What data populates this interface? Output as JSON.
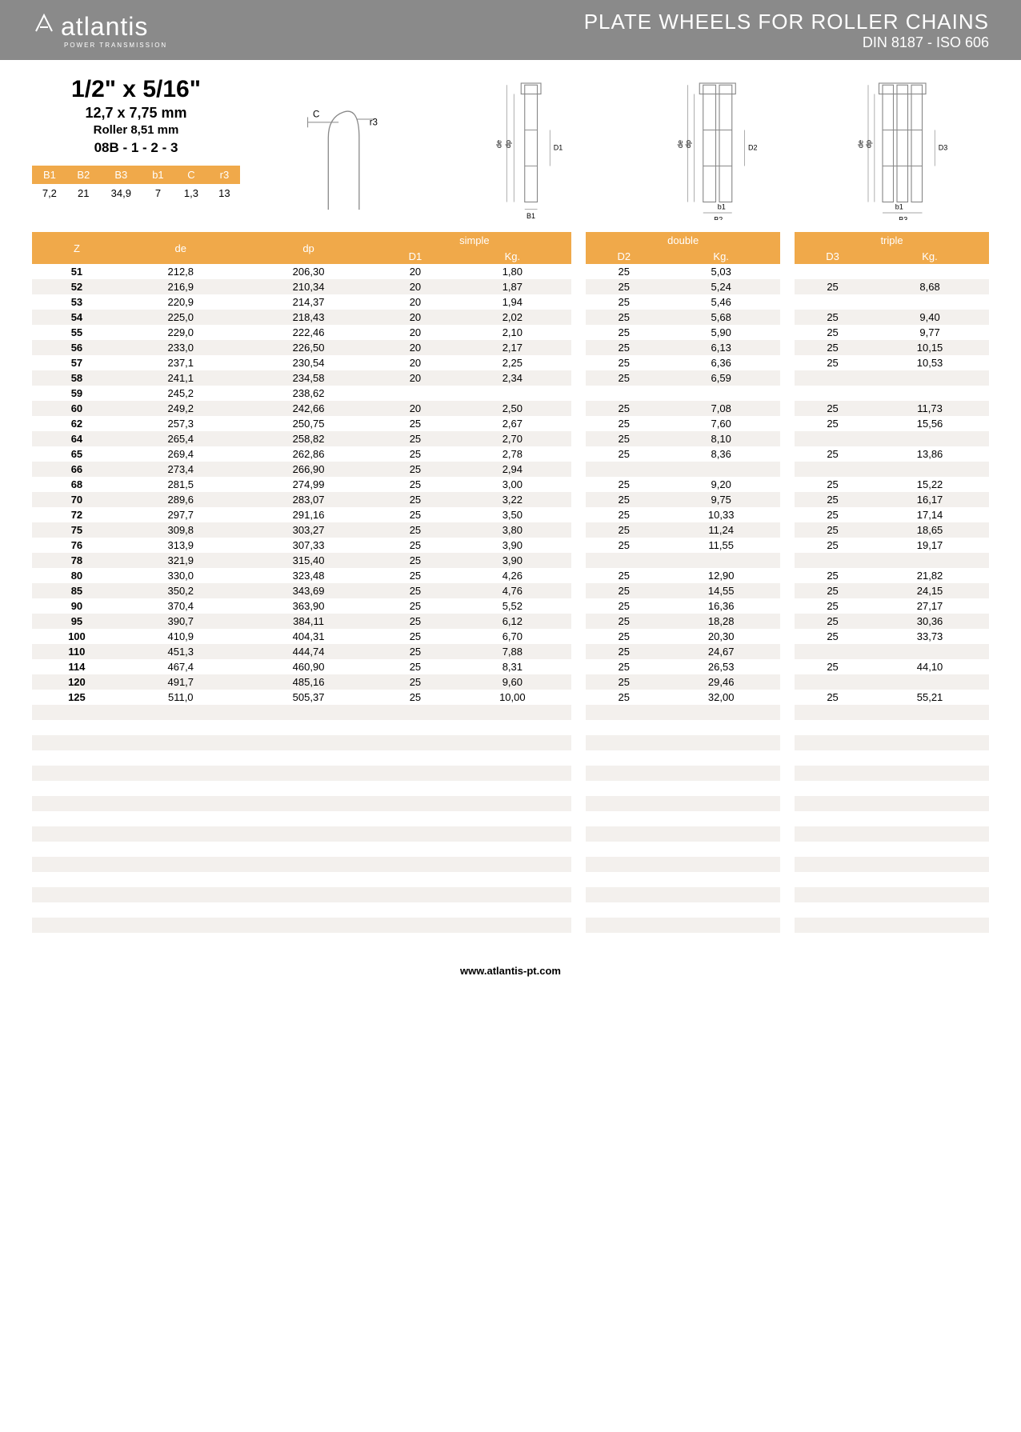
{
  "header": {
    "logo_icon": "⊰⊱",
    "logo_text": "atlantis",
    "logo_sub": "POWER TRANSMISSION",
    "title": "PLATE WHEELS FOR ROLLER CHAINS",
    "subtitle": "DIN 8187 - ISO 606"
  },
  "spec": {
    "title": "1/2\" x 5/16\"",
    "mm": "12,7 x 7,75 mm",
    "roller": "Roller 8,51 mm",
    "code": "08B - 1 - 2 - 3"
  },
  "small_table": {
    "headers": [
      "B1",
      "B2",
      "B3",
      "b1",
      "C",
      "r3"
    ],
    "row": [
      "7,2",
      "21",
      "34,9",
      "7",
      "1,3",
      "13"
    ]
  },
  "diagram_labels": {
    "c": "C",
    "r3": "r3",
    "de": "de",
    "dp": "dp",
    "d1": "D1",
    "d2": "D2",
    "d3": "D3",
    "b1_cap": "B1",
    "b1": "b1",
    "b2": "B2",
    "b3": "B3"
  },
  "colors": {
    "header_bg": "#8a8a8a",
    "accent": "#f0a94a",
    "row_alt": "#f3f0ed",
    "text": "#000000"
  },
  "main_table": {
    "group_headers": [
      "",
      "",
      "",
      "simple",
      "double",
      "triple"
    ],
    "sub_headers": [
      "Z",
      "de",
      "dp",
      "D1",
      "Kg.",
      "D2",
      "Kg.",
      "D3",
      "Kg."
    ],
    "rows": [
      {
        "z": "51",
        "de": "212,8",
        "dp": "206,30",
        "d1": "20",
        "kg1": "1,80",
        "d2": "25",
        "kg2": "5,03",
        "d3": "",
        "kg3": ""
      },
      {
        "z": "52",
        "de": "216,9",
        "dp": "210,34",
        "d1": "20",
        "kg1": "1,87",
        "d2": "25",
        "kg2": "5,24",
        "d3": "25",
        "kg3": "8,68"
      },
      {
        "z": "53",
        "de": "220,9",
        "dp": "214,37",
        "d1": "20",
        "kg1": "1,94",
        "d2": "25",
        "kg2": "5,46",
        "d3": "",
        "kg3": ""
      },
      {
        "z": "54",
        "de": "225,0",
        "dp": "218,43",
        "d1": "20",
        "kg1": "2,02",
        "d2": "25",
        "kg2": "5,68",
        "d3": "25",
        "kg3": "9,40"
      },
      {
        "z": "55",
        "de": "229,0",
        "dp": "222,46",
        "d1": "20",
        "kg1": "2,10",
        "d2": "25",
        "kg2": "5,90",
        "d3": "25",
        "kg3": "9,77"
      },
      {
        "z": "56",
        "de": "233,0",
        "dp": "226,50",
        "d1": "20",
        "kg1": "2,17",
        "d2": "25",
        "kg2": "6,13",
        "d3": "25",
        "kg3": "10,15"
      },
      {
        "z": "57",
        "de": "237,1",
        "dp": "230,54",
        "d1": "20",
        "kg1": "2,25",
        "d2": "25",
        "kg2": "6,36",
        "d3": "25",
        "kg3": "10,53"
      },
      {
        "z": "58",
        "de": "241,1",
        "dp": "234,58",
        "d1": "20",
        "kg1": "2,34",
        "d2": "25",
        "kg2": "6,59",
        "d3": "",
        "kg3": ""
      },
      {
        "z": "59",
        "de": "245,2",
        "dp": "238,62",
        "d1": "",
        "kg1": "",
        "d2": "",
        "kg2": "",
        "d3": "",
        "kg3": ""
      },
      {
        "z": "60",
        "de": "249,2",
        "dp": "242,66",
        "d1": "20",
        "kg1": "2,50",
        "d2": "25",
        "kg2": "7,08",
        "d3": "25",
        "kg3": "11,73"
      },
      {
        "z": "62",
        "de": "257,3",
        "dp": "250,75",
        "d1": "25",
        "kg1": "2,67",
        "d2": "25",
        "kg2": "7,60",
        "d3": "25",
        "kg3": "15,56"
      },
      {
        "z": "64",
        "de": "265,4",
        "dp": "258,82",
        "d1": "25",
        "kg1": "2,70",
        "d2": "25",
        "kg2": "8,10",
        "d3": "",
        "kg3": ""
      },
      {
        "z": "65",
        "de": "269,4",
        "dp": "262,86",
        "d1": "25",
        "kg1": "2,78",
        "d2": "25",
        "kg2": "8,36",
        "d3": "25",
        "kg3": "13,86"
      },
      {
        "z": "66",
        "de": "273,4",
        "dp": "266,90",
        "d1": "25",
        "kg1": "2,94",
        "d2": "",
        "kg2": "",
        "d3": "",
        "kg3": ""
      },
      {
        "z": "68",
        "de": "281,5",
        "dp": "274,99",
        "d1": "25",
        "kg1": "3,00",
        "d2": "25",
        "kg2": "9,20",
        "d3": "25",
        "kg3": "15,22"
      },
      {
        "z": "70",
        "de": "289,6",
        "dp": "283,07",
        "d1": "25",
        "kg1": "3,22",
        "d2": "25",
        "kg2": "9,75",
        "d3": "25",
        "kg3": "16,17"
      },
      {
        "z": "72",
        "de": "297,7",
        "dp": "291,16",
        "d1": "25",
        "kg1": "3,50",
        "d2": "25",
        "kg2": "10,33",
        "d3": "25",
        "kg3": "17,14"
      },
      {
        "z": "75",
        "de": "309,8",
        "dp": "303,27",
        "d1": "25",
        "kg1": "3,80",
        "d2": "25",
        "kg2": "11,24",
        "d3": "25",
        "kg3": "18,65"
      },
      {
        "z": "76",
        "de": "313,9",
        "dp": "307,33",
        "d1": "25",
        "kg1": "3,90",
        "d2": "25",
        "kg2": "11,55",
        "d3": "25",
        "kg3": "19,17"
      },
      {
        "z": "78",
        "de": "321,9",
        "dp": "315,40",
        "d1": "25",
        "kg1": "3,90",
        "d2": "",
        "kg2": "",
        "d3": "",
        "kg3": ""
      },
      {
        "z": "80",
        "de": "330,0",
        "dp": "323,48",
        "d1": "25",
        "kg1": "4,26",
        "d2": "25",
        "kg2": "12,90",
        "d3": "25",
        "kg3": "21,82"
      },
      {
        "z": "85",
        "de": "350,2",
        "dp": "343,69",
        "d1": "25",
        "kg1": "4,76",
        "d2": "25",
        "kg2": "14,55",
        "d3": "25",
        "kg3": "24,15"
      },
      {
        "z": "90",
        "de": "370,4",
        "dp": "363,90",
        "d1": "25",
        "kg1": "5,52",
        "d2": "25",
        "kg2": "16,36",
        "d3": "25",
        "kg3": "27,17"
      },
      {
        "z": "95",
        "de": "390,7",
        "dp": "384,11",
        "d1": "25",
        "kg1": "6,12",
        "d2": "25",
        "kg2": "18,28",
        "d3": "25",
        "kg3": "30,36"
      },
      {
        "z": "100",
        "de": "410,9",
        "dp": "404,31",
        "d1": "25",
        "kg1": "6,70",
        "d2": "25",
        "kg2": "20,30",
        "d3": "25",
        "kg3": "33,73"
      },
      {
        "z": "110",
        "de": "451,3",
        "dp": "444,74",
        "d1": "25",
        "kg1": "7,88",
        "d2": "25",
        "kg2": "24,67",
        "d3": "",
        "kg3": ""
      },
      {
        "z": "114",
        "de": "467,4",
        "dp": "460,90",
        "d1": "25",
        "kg1": "8,31",
        "d2": "25",
        "kg2": "26,53",
        "d3": "25",
        "kg3": "44,10"
      },
      {
        "z": "120",
        "de": "491,7",
        "dp": "485,16",
        "d1": "25",
        "kg1": "9,60",
        "d2": "25",
        "kg2": "29,46",
        "d3": "",
        "kg3": ""
      },
      {
        "z": "125",
        "de": "511,0",
        "dp": "505,37",
        "d1": "25",
        "kg1": "10,00",
        "d2": "25",
        "kg2": "32,00",
        "d3": "25",
        "kg3": "55,21"
      }
    ],
    "empty_rows": 15
  },
  "footer": "www.atlantis-pt.com"
}
